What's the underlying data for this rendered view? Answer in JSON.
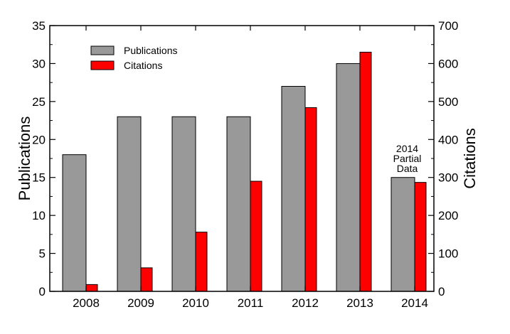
{
  "chart_data": {
    "type": "bar",
    "categories": [
      "2008",
      "2009",
      "2010",
      "2011",
      "2012",
      "2013",
      "2014"
    ],
    "series": [
      {
        "name": "Publications",
        "axis": "left",
        "color": "#999999",
        "values": [
          18,
          23,
          23,
          23,
          27,
          30,
          15
        ]
      },
      {
        "name": "Citations",
        "axis": "right",
        "color": "#ff0000",
        "values": [
          18,
          62,
          156,
          290,
          484,
          630,
          287
        ]
      }
    ],
    "ylabel": "Publications",
    "y2label": "Citations",
    "ylim": [
      0,
      35
    ],
    "y2lim": [
      0,
      700
    ],
    "yticks": [
      0,
      5,
      10,
      15,
      20,
      25,
      30,
      35
    ],
    "y2ticks": [
      0,
      100,
      200,
      300,
      400,
      500,
      600,
      700
    ],
    "legend": {
      "placement": "top-left",
      "entries": [
        "Publications",
        "Citations"
      ]
    },
    "annotation": {
      "category": "2014",
      "lines": [
        "2014",
        "Partial",
        "Data"
      ]
    },
    "grid": false
  }
}
